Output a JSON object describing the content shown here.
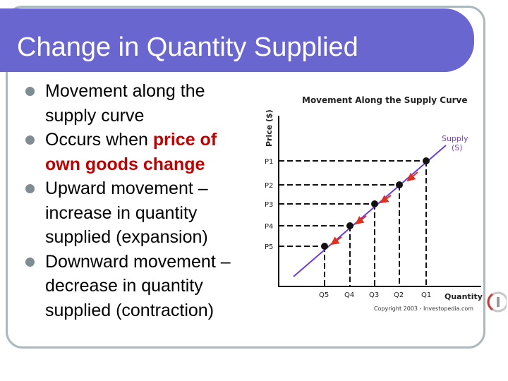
{
  "slide": {
    "title": "Change in Quantity Supplied",
    "bullets": [
      {
        "parts": [
          {
            "text": "Movement along the supply curve",
            "highlight": false
          }
        ]
      },
      {
        "parts": [
          {
            "text": "Occurs when ",
            "highlight": false
          },
          {
            "text": "price of own goods change",
            "highlight": true
          }
        ]
      },
      {
        "parts": [
          {
            "text": "Upward movement – increase in quantity supplied (expansion)",
            "highlight": false
          }
        ]
      },
      {
        "parts": [
          {
            "text": "Downward movement – decrease in quantity supplied (contraction)",
            "highlight": false
          }
        ]
      }
    ]
  },
  "colors": {
    "title_bar": "#6a66cf",
    "highlight": "#c00000",
    "supply_line": "#6a3fd8",
    "supply_label": "#7a3fd0",
    "arrow": "#e0301e"
  },
  "diagram": {
    "title": "Movement Along the Supply Curve",
    "y_axis_label": "Price ($)",
    "x_axis_label": "Quantity",
    "supply_label_line1": "Supply",
    "supply_label_line2": "(S)",
    "price_labels": [
      "P1",
      "P2",
      "P3",
      "P4",
      "P5"
    ],
    "quantity_labels": [
      "Q5",
      "Q4",
      "Q3",
      "Q2",
      "Q1"
    ],
    "copyright": "Copyright 2003 - Investopedia.com"
  }
}
